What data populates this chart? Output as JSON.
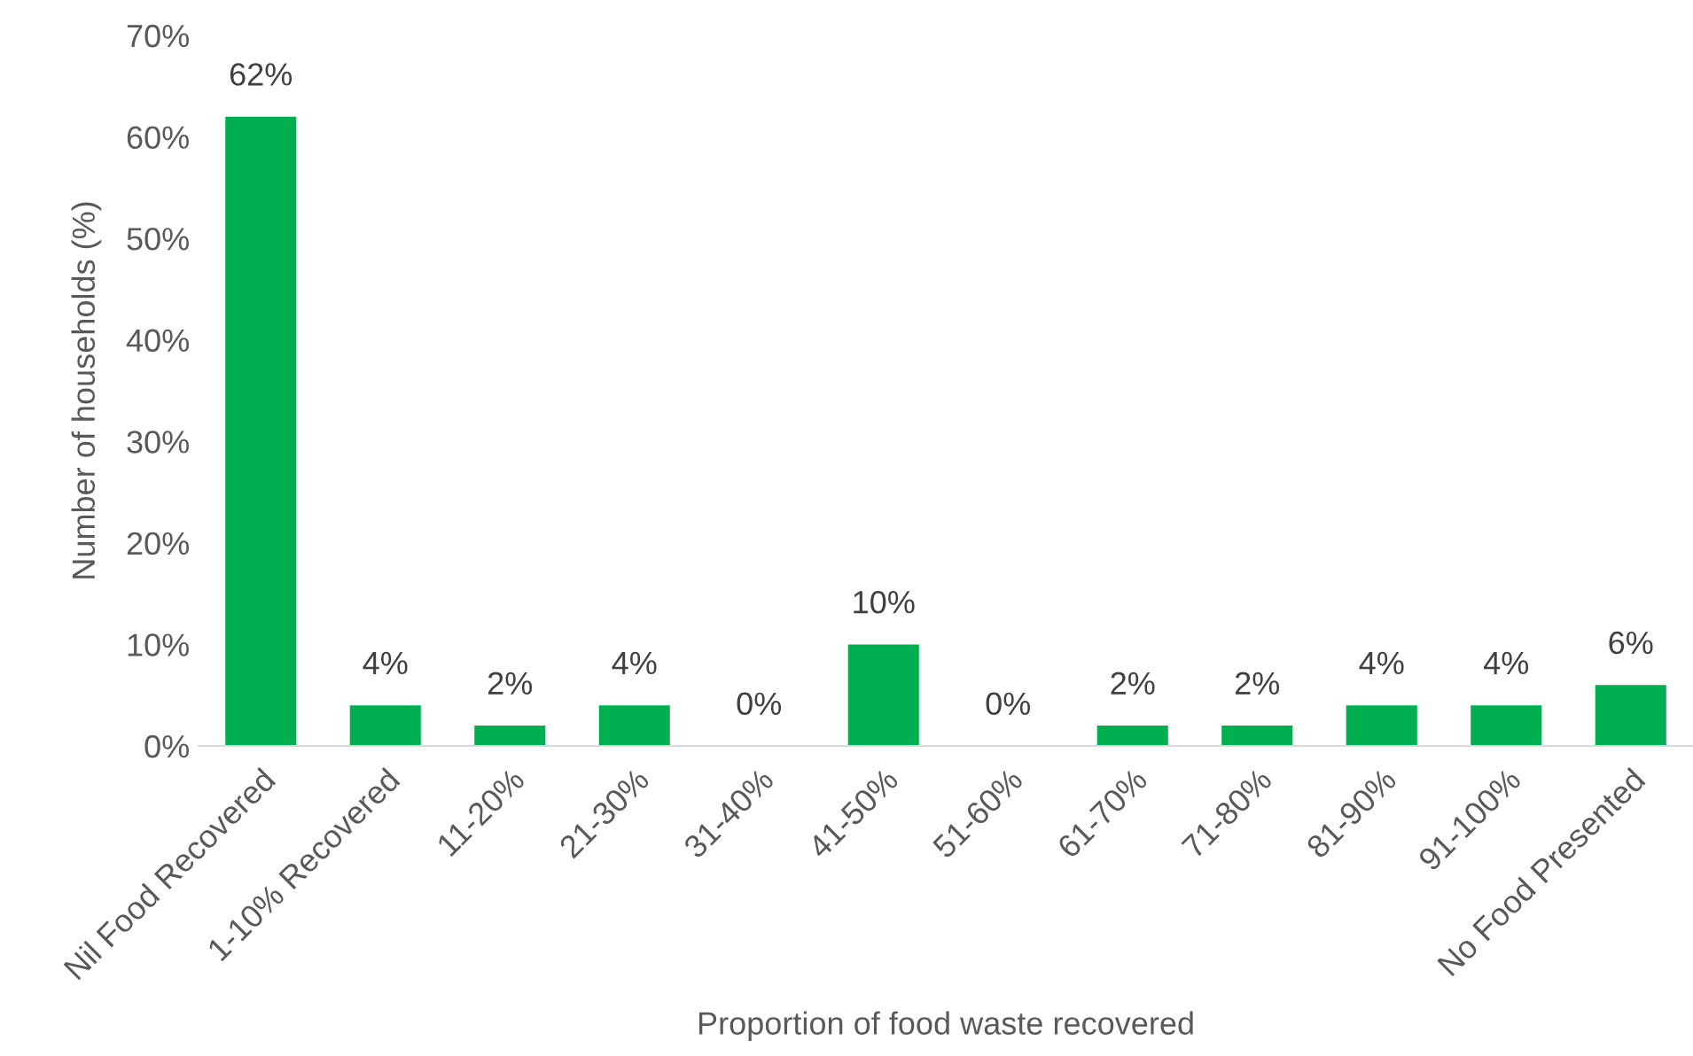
{
  "chart_data": {
    "type": "bar",
    "xlabel": "Proportion of food waste recovered",
    "ylabel": "Number of households (%)",
    "categories": [
      "Nil Food Recovered",
      "1-10% Recovered",
      "11-20%",
      "21-30%",
      "31-40%",
      "41-50%",
      "51-60%",
      "61-70%",
      "71-80%",
      "81-90%",
      "91-100%",
      "No Food Presented"
    ],
    "values": [
      62,
      4,
      2,
      4,
      0,
      10,
      0,
      2,
      2,
      4,
      4,
      6
    ],
    "value_labels": [
      "62%",
      "4%",
      "2%",
      "4%",
      "0%",
      "10%",
      "0%",
      "2%",
      "2%",
      "4%",
      "4%",
      "6%"
    ],
    "color": "#00b050",
    "ylim": [
      0,
      70
    ],
    "yticks": [
      {
        "value": 0,
        "label": "0%"
      },
      {
        "value": 10,
        "label": "10%"
      },
      {
        "value": 20,
        "label": "20%"
      },
      {
        "value": 30,
        "label": "30%"
      },
      {
        "value": 40,
        "label": "40%"
      },
      {
        "value": 50,
        "label": "50%"
      },
      {
        "value": 60,
        "label": "60%"
      },
      {
        "value": 70,
        "label": "70%"
      }
    ],
    "grid": false,
    "legend": false
  }
}
